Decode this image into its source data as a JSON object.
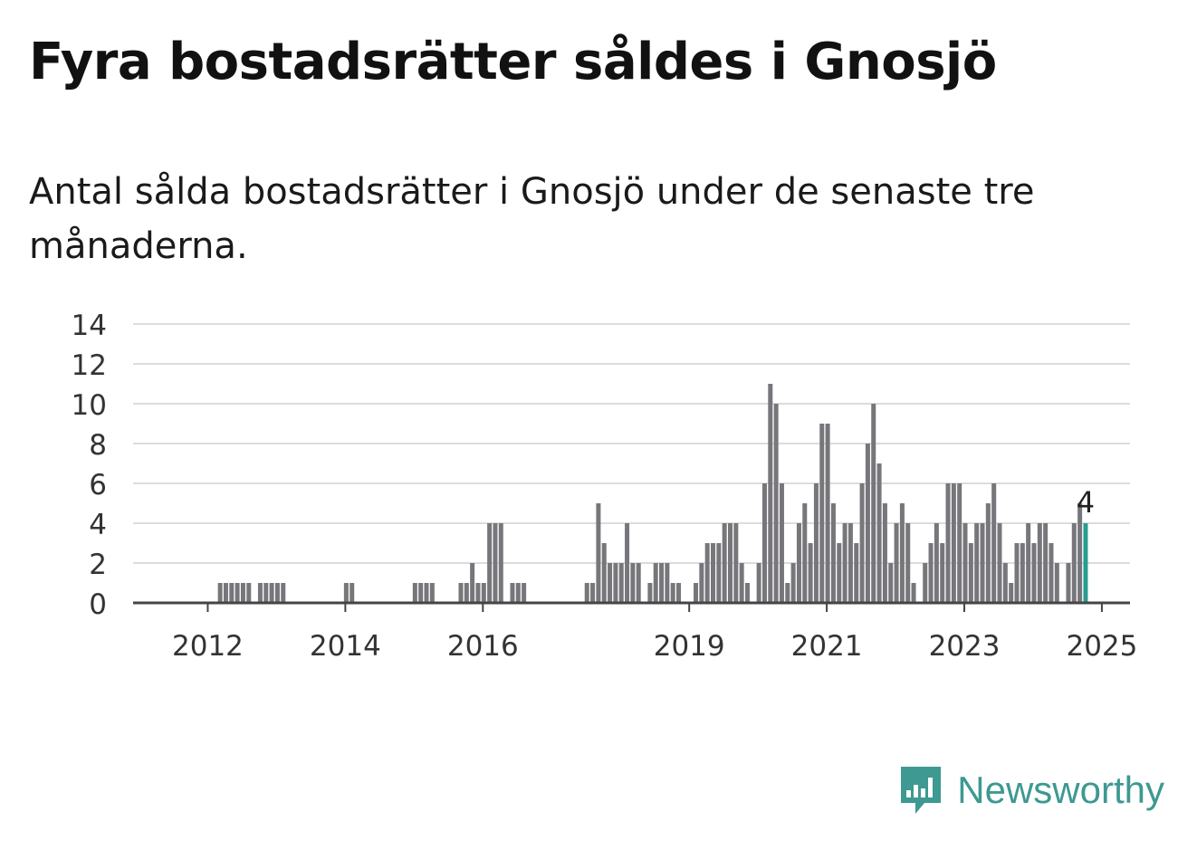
{
  "header": {
    "title": "Fyra bostadsrätter såldes i Gnosjö",
    "subtitle": "Antal sålda bostadsrätter i Gnosjö under de senaste tre månaderna."
  },
  "brand": {
    "name": "Newsworthy",
    "icon": "newsworthy-logo-icon",
    "color": "#3d9991"
  },
  "chart_data": {
    "type": "bar",
    "x_ticks": [
      "2012",
      "2014",
      "2016",
      "2019",
      "2021",
      "2023",
      "2025"
    ],
    "y_ticks": [
      "0",
      "2",
      "4",
      "6",
      "8",
      "10",
      "12",
      "14"
    ],
    "ylim": [
      0,
      14
    ],
    "grid": true,
    "bar_color": "#76767b",
    "highlight_color": "#2a9d8f",
    "highlight_label": "4",
    "series": [
      {
        "values": [
          0,
          0,
          0,
          0,
          0,
          0,
          0,
          0,
          0,
          0,
          0,
          0,
          0,
          0,
          1,
          1,
          1,
          1,
          1,
          1,
          0,
          1,
          1,
          1,
          1,
          1,
          0,
          0,
          0,
          0,
          0,
          0,
          0,
          0,
          0,
          0,
          1,
          1,
          0,
          0,
          0,
          0,
          0,
          0,
          0,
          0,
          0,
          0,
          1,
          1,
          1,
          1,
          0,
          0,
          0,
          0,
          1,
          1,
          2,
          1,
          1,
          4,
          4,
          4,
          0,
          1,
          1,
          1,
          0,
          0,
          0,
          0,
          0,
          0,
          0,
          0,
          0,
          0,
          1,
          1,
          5,
          3,
          2,
          2,
          2,
          4,
          2,
          2,
          0,
          1,
          2,
          2,
          2,
          1,
          1,
          0,
          0,
          1,
          2,
          3,
          3,
          3,
          4,
          4,
          4,
          2,
          1,
          0,
          2,
          6,
          11,
          10,
          6,
          1,
          2,
          4,
          5,
          3,
          6,
          9,
          9,
          5,
          3,
          4,
          4,
          3,
          6,
          8,
          10,
          7,
          5,
          2,
          4,
          5,
          4,
          1,
          0,
          2,
          3,
          4,
          3,
          6,
          6,
          6,
          4,
          3,
          4,
          4,
          5,
          6,
          4,
          2,
          1,
          3,
          3,
          4,
          3,
          4,
          4,
          3,
          2,
          0,
          2,
          4,
          5,
          4
        ]
      }
    ]
  }
}
